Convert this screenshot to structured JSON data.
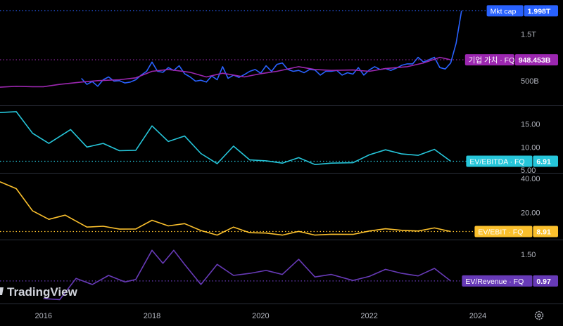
{
  "branding": {
    "logo_text": "TradingView"
  },
  "x_axis": {
    "ticks": [
      "2016",
      "2018",
      "2020",
      "2022",
      "2024"
    ],
    "domain": [
      2015.2,
      2024.7
    ]
  },
  "settings_icon": "gear-icon",
  "chart_data": [
    {
      "type": "line",
      "pane": "valuation",
      "ylim": [
        0,
        2.2
      ],
      "y_unit": "T",
      "ticks": [
        {
          "value": 1.5,
          "label": "1.5T"
        },
        {
          "value": 0.5,
          "label": "500B"
        }
      ],
      "series": [
        {
          "name": "Mkt cap",
          "color": "#2962ff",
          "last_label": "1.998T",
          "last_value": 1.998,
          "x": [
            2016.7,
            2016.8,
            2016.9,
            2017.0,
            2017.1,
            2017.2,
            2017.3,
            2017.4,
            2017.5,
            2017.6,
            2017.7,
            2017.8,
            2017.9,
            2018.0,
            2018.1,
            2018.2,
            2018.3,
            2018.4,
            2018.5,
            2018.6,
            2018.7,
            2018.8,
            2018.9,
            2019.0,
            2019.1,
            2019.2,
            2019.3,
            2019.4,
            2019.5,
            2019.6,
            2019.7,
            2019.8,
            2019.9,
            2020.0,
            2020.1,
            2020.2,
            2020.3,
            2020.4,
            2020.5,
            2020.6,
            2020.7,
            2020.8,
            2020.9,
            2021.0,
            2021.1,
            2021.2,
            2021.3,
            2021.4,
            2021.5,
            2021.6,
            2021.7,
            2021.8,
            2021.9,
            2022.0,
            2022.1,
            2022.2,
            2022.3,
            2022.4,
            2022.5,
            2022.6,
            2022.7,
            2022.8,
            2022.9,
            2023.0,
            2023.1,
            2023.2,
            2023.3,
            2023.4,
            2023.5,
            2023.6,
            2023.7
          ],
          "values": [
            0.55,
            0.42,
            0.48,
            0.38,
            0.52,
            0.58,
            0.49,
            0.5,
            0.45,
            0.47,
            0.52,
            0.62,
            0.7,
            0.9,
            0.7,
            0.68,
            0.78,
            0.72,
            0.82,
            0.65,
            0.58,
            0.49,
            0.51,
            0.47,
            0.6,
            0.52,
            0.8,
            0.55,
            0.62,
            0.57,
            0.63,
            0.7,
            0.74,
            0.66,
            0.82,
            0.7,
            0.85,
            0.88,
            0.74,
            0.7,
            0.72,
            0.67,
            0.74,
            0.73,
            0.62,
            0.7,
            0.7,
            0.72,
            0.62,
            0.67,
            0.64,
            0.78,
            0.62,
            0.73,
            0.8,
            0.74,
            0.76,
            0.72,
            0.77,
            0.83,
            0.86,
            0.86,
            1.0,
            0.9,
            0.95,
            1.0,
            0.78,
            0.75,
            0.88,
            1.3,
            1.998
          ]
        },
        {
          "name": "기업 가치 · FQ",
          "color": "#9c27b0",
          "last_label": "948.453B",
          "last_value": 0.948,
          "x": [
            2015.2,
            2015.5,
            2015.8,
            2016.0,
            2016.3,
            2016.7,
            2017.0,
            2017.4,
            2017.7,
            2018.0,
            2018.3,
            2018.7,
            2019.0,
            2019.3,
            2019.7,
            2020.0,
            2020.3,
            2020.7,
            2021.0,
            2021.3,
            2021.7,
            2022.0,
            2022.3,
            2022.7,
            2023.0,
            2023.3,
            2023.5
          ],
          "values": [
            0.36,
            0.38,
            0.37,
            0.37,
            0.42,
            0.47,
            0.5,
            0.52,
            0.56,
            0.7,
            0.74,
            0.68,
            0.58,
            0.66,
            0.58,
            0.65,
            0.7,
            0.8,
            0.74,
            0.72,
            0.73,
            0.7,
            0.76,
            0.8,
            0.88,
            1.0,
            0.948
          ]
        }
      ]
    },
    {
      "type": "line",
      "pane": "ev-ebitda",
      "ylim": [
        4.7,
        18.6
      ],
      "ticks": [
        {
          "value": 15,
          "label": "15.00"
        },
        {
          "value": 10,
          "label": "10.00"
        },
        {
          "value": 5,
          "label": "5.00"
        }
      ],
      "series": [
        {
          "name": "EV/EBITDA · FQ",
          "color": "#26c6da",
          "last_label": "6.91",
          "last_value": 6.91,
          "x": [
            2015.2,
            2015.5,
            2015.8,
            2016.1,
            2016.5,
            2016.8,
            2017.1,
            2017.4,
            2017.7,
            2018.0,
            2018.3,
            2018.6,
            2018.9,
            2019.2,
            2019.5,
            2019.8,
            2020.1,
            2020.4,
            2020.7,
            2021.0,
            2021.3,
            2021.7,
            2022.0,
            2022.3,
            2022.6,
            2022.9,
            2023.2,
            2023.5
          ],
          "values": [
            17.5,
            17.7,
            13.0,
            10.8,
            13.8,
            10.0,
            10.8,
            9.2,
            9.3,
            14.6,
            11.2,
            12.4,
            8.6,
            6.4,
            10.2,
            7.2,
            7.0,
            6.5,
            7.7,
            6.2,
            6.5,
            6.6,
            8.3,
            9.4,
            8.5,
            8.2,
            9.5,
            6.91
          ]
        }
      ]
    },
    {
      "type": "line",
      "pane": "ev-ebit",
      "ylim": [
        5,
        42
      ],
      "ticks": [
        {
          "value": 40,
          "label": "40.00"
        },
        {
          "value": 20,
          "label": "20.00"
        }
      ],
      "series": [
        {
          "name": "EV/EBIT · FQ",
          "color": "#fbc02d",
          "last_label": "8.91",
          "last_value": 8.91,
          "x": [
            2015.2,
            2015.5,
            2015.8,
            2016.1,
            2016.4,
            2016.8,
            2017.1,
            2017.4,
            2017.7,
            2018.0,
            2018.3,
            2018.6,
            2018.9,
            2019.2,
            2019.5,
            2019.8,
            2020.1,
            2020.4,
            2020.7,
            2021.0,
            2021.3,
            2021.7,
            2022.0,
            2022.3,
            2022.6,
            2022.9,
            2023.2,
            2023.5
          ],
          "values": [
            38.0,
            34.0,
            21.0,
            16.0,
            18.5,
            11.5,
            12.0,
            10.3,
            10.4,
            15.5,
            12.2,
            13.5,
            9.5,
            6.8,
            11.5,
            8.2,
            8.0,
            6.8,
            9.0,
            6.8,
            7.3,
            7.2,
            9.2,
            10.5,
            9.6,
            9.2,
            11.0,
            8.91
          ]
        }
      ]
    },
    {
      "type": "line",
      "pane": "ev-revenue",
      "ylim": [
        0.55,
        1.75
      ],
      "ticks": [
        {
          "value": 1.5,
          "label": "1.50"
        }
      ],
      "series": [
        {
          "name": "EV/Revenue · FQ",
          "color": "#673ab7",
          "last_label": "0.97",
          "last_value": 0.97,
          "x": [
            2016.0,
            2016.3,
            2016.6,
            2016.9,
            2017.2,
            2017.5,
            2017.7,
            2018.0,
            2018.2,
            2018.4,
            2018.6,
            2018.9,
            2019.2,
            2019.5,
            2019.8,
            2020.1,
            2020.4,
            2020.7,
            2021.0,
            2021.3,
            2021.7,
            2022.0,
            2022.3,
            2022.6,
            2022.9,
            2023.2,
            2023.5
          ],
          "values": [
            0.62,
            0.6,
            1.02,
            0.9,
            1.08,
            0.95,
            1.0,
            1.58,
            1.32,
            1.58,
            1.3,
            0.9,
            1.3,
            1.08,
            1.12,
            1.18,
            1.1,
            1.4,
            1.05,
            1.1,
            0.98,
            1.06,
            1.2,
            1.12,
            1.07,
            1.22,
            0.97
          ]
        }
      ]
    }
  ]
}
